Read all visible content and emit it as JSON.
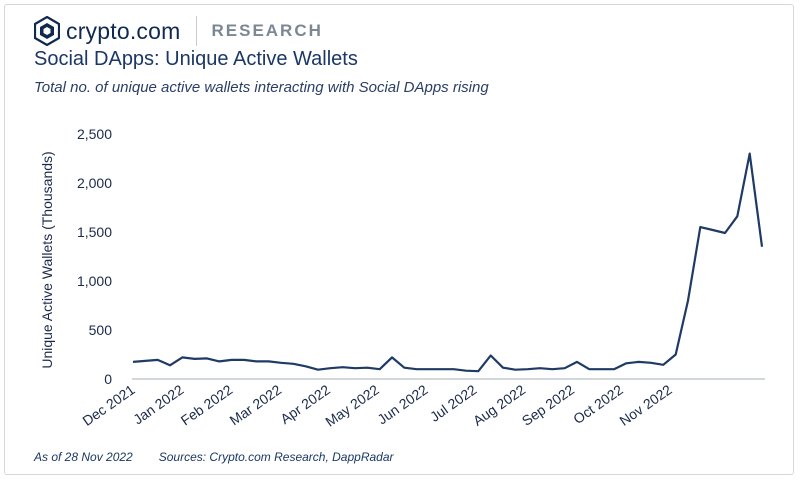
{
  "brand": {
    "name": "crypto.com",
    "section": "RESEARCH"
  },
  "colors": {
    "line": "#1f3a64",
    "axis": "#b8bfc8",
    "brand": "#0f2a4f"
  },
  "footnote": {
    "asof": "As of 28 Nov 2022",
    "sources": "Sources: Crypto.com Research, DappRadar"
  },
  "chart_data": {
    "type": "line",
    "title": "Social DApps: Unique Active Wallets",
    "subtitle": "Total no. of unique active wallets interacting with Social DApps rising",
    "xlabel": "",
    "ylabel": "Unique Active Wallets (Thousands)",
    "ylim": [
      0,
      2500
    ],
    "yticks": [
      0,
      500,
      1000,
      1500,
      2000,
      2500
    ],
    "ytick_labels": [
      "0",
      "500",
      "1,000",
      "1,500",
      "2,000",
      "2,500"
    ],
    "xticks": [
      "Dec 2021",
      "Jan 2022",
      "Feb 2022",
      "Mar 2022",
      "Apr 2022",
      "May 2022",
      "Jun 2022",
      "Jul 2022",
      "Aug 2022",
      "Sep 2022",
      "Oct 2022",
      "Nov 2022"
    ],
    "grid": false,
    "series": [
      {
        "values": [
          175,
          185,
          195,
          140,
          220,
          205,
          210,
          180,
          195,
          195,
          180,
          180,
          165,
          155,
          130,
          95,
          110,
          120,
          110,
          115,
          100,
          220,
          115,
          100,
          100,
          100,
          100,
          85,
          80,
          240,
          115,
          95,
          100,
          110,
          100,
          110,
          175,
          100,
          100,
          100,
          160,
          175,
          165,
          145,
          250,
          800,
          1550,
          1520,
          1490,
          1660,
          2300,
          1350
        ]
      }
    ]
  }
}
